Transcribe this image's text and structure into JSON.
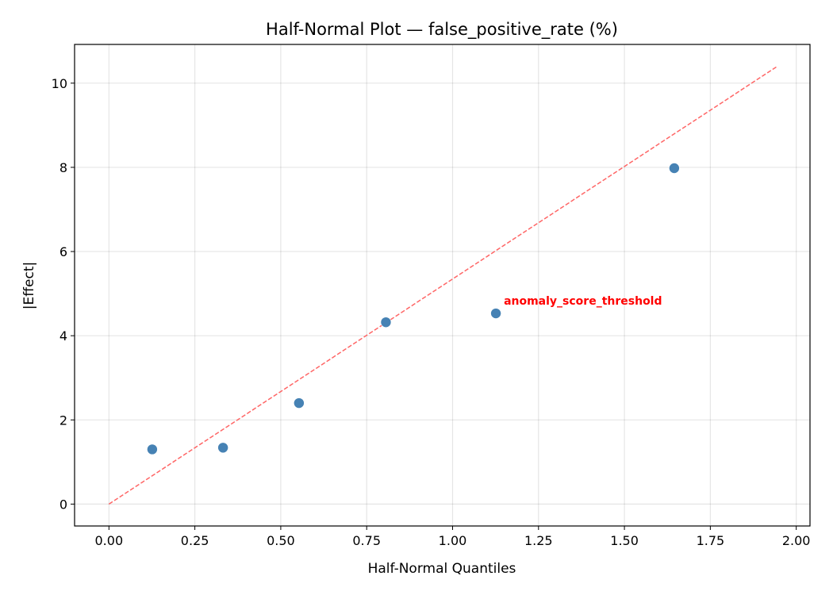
{
  "chart_data": {
    "type": "scatter",
    "title": "Half-Normal Plot — false_positive_rate (%)",
    "xlabel": "Half-Normal Quantiles",
    "ylabel": "|Effect|",
    "xlim": [
      -0.1,
      2.04
    ],
    "ylim": [
      -0.52,
      10.92
    ],
    "xticks": [
      "0.00",
      "0.25",
      "0.50",
      "0.75",
      "1.00",
      "1.25",
      "1.50",
      "1.75",
      "2.00"
    ],
    "yticks": [
      "0",
      "2",
      "4",
      "6",
      "8",
      "10"
    ],
    "grid": true,
    "points": [
      {
        "x": 0.126,
        "y": 1.3
      },
      {
        "x": 0.332,
        "y": 1.34
      },
      {
        "x": 0.553,
        "y": 2.4
      },
      {
        "x": 0.806,
        "y": 4.32
      },
      {
        "x": 1.126,
        "y": 4.53
      },
      {
        "x": 1.645,
        "y": 7.98
      }
    ],
    "reference_line": {
      "x": [
        0,
        1.945
      ],
      "y": [
        0,
        10.4
      ],
      "style": "dashed",
      "color": "#ff6666"
    },
    "annotations": [
      {
        "text": "anomaly_score_threshold",
        "x": 1.126,
        "y": 4.53,
        "color": "#ff0000"
      }
    ],
    "point_color": "#4682b4"
  }
}
